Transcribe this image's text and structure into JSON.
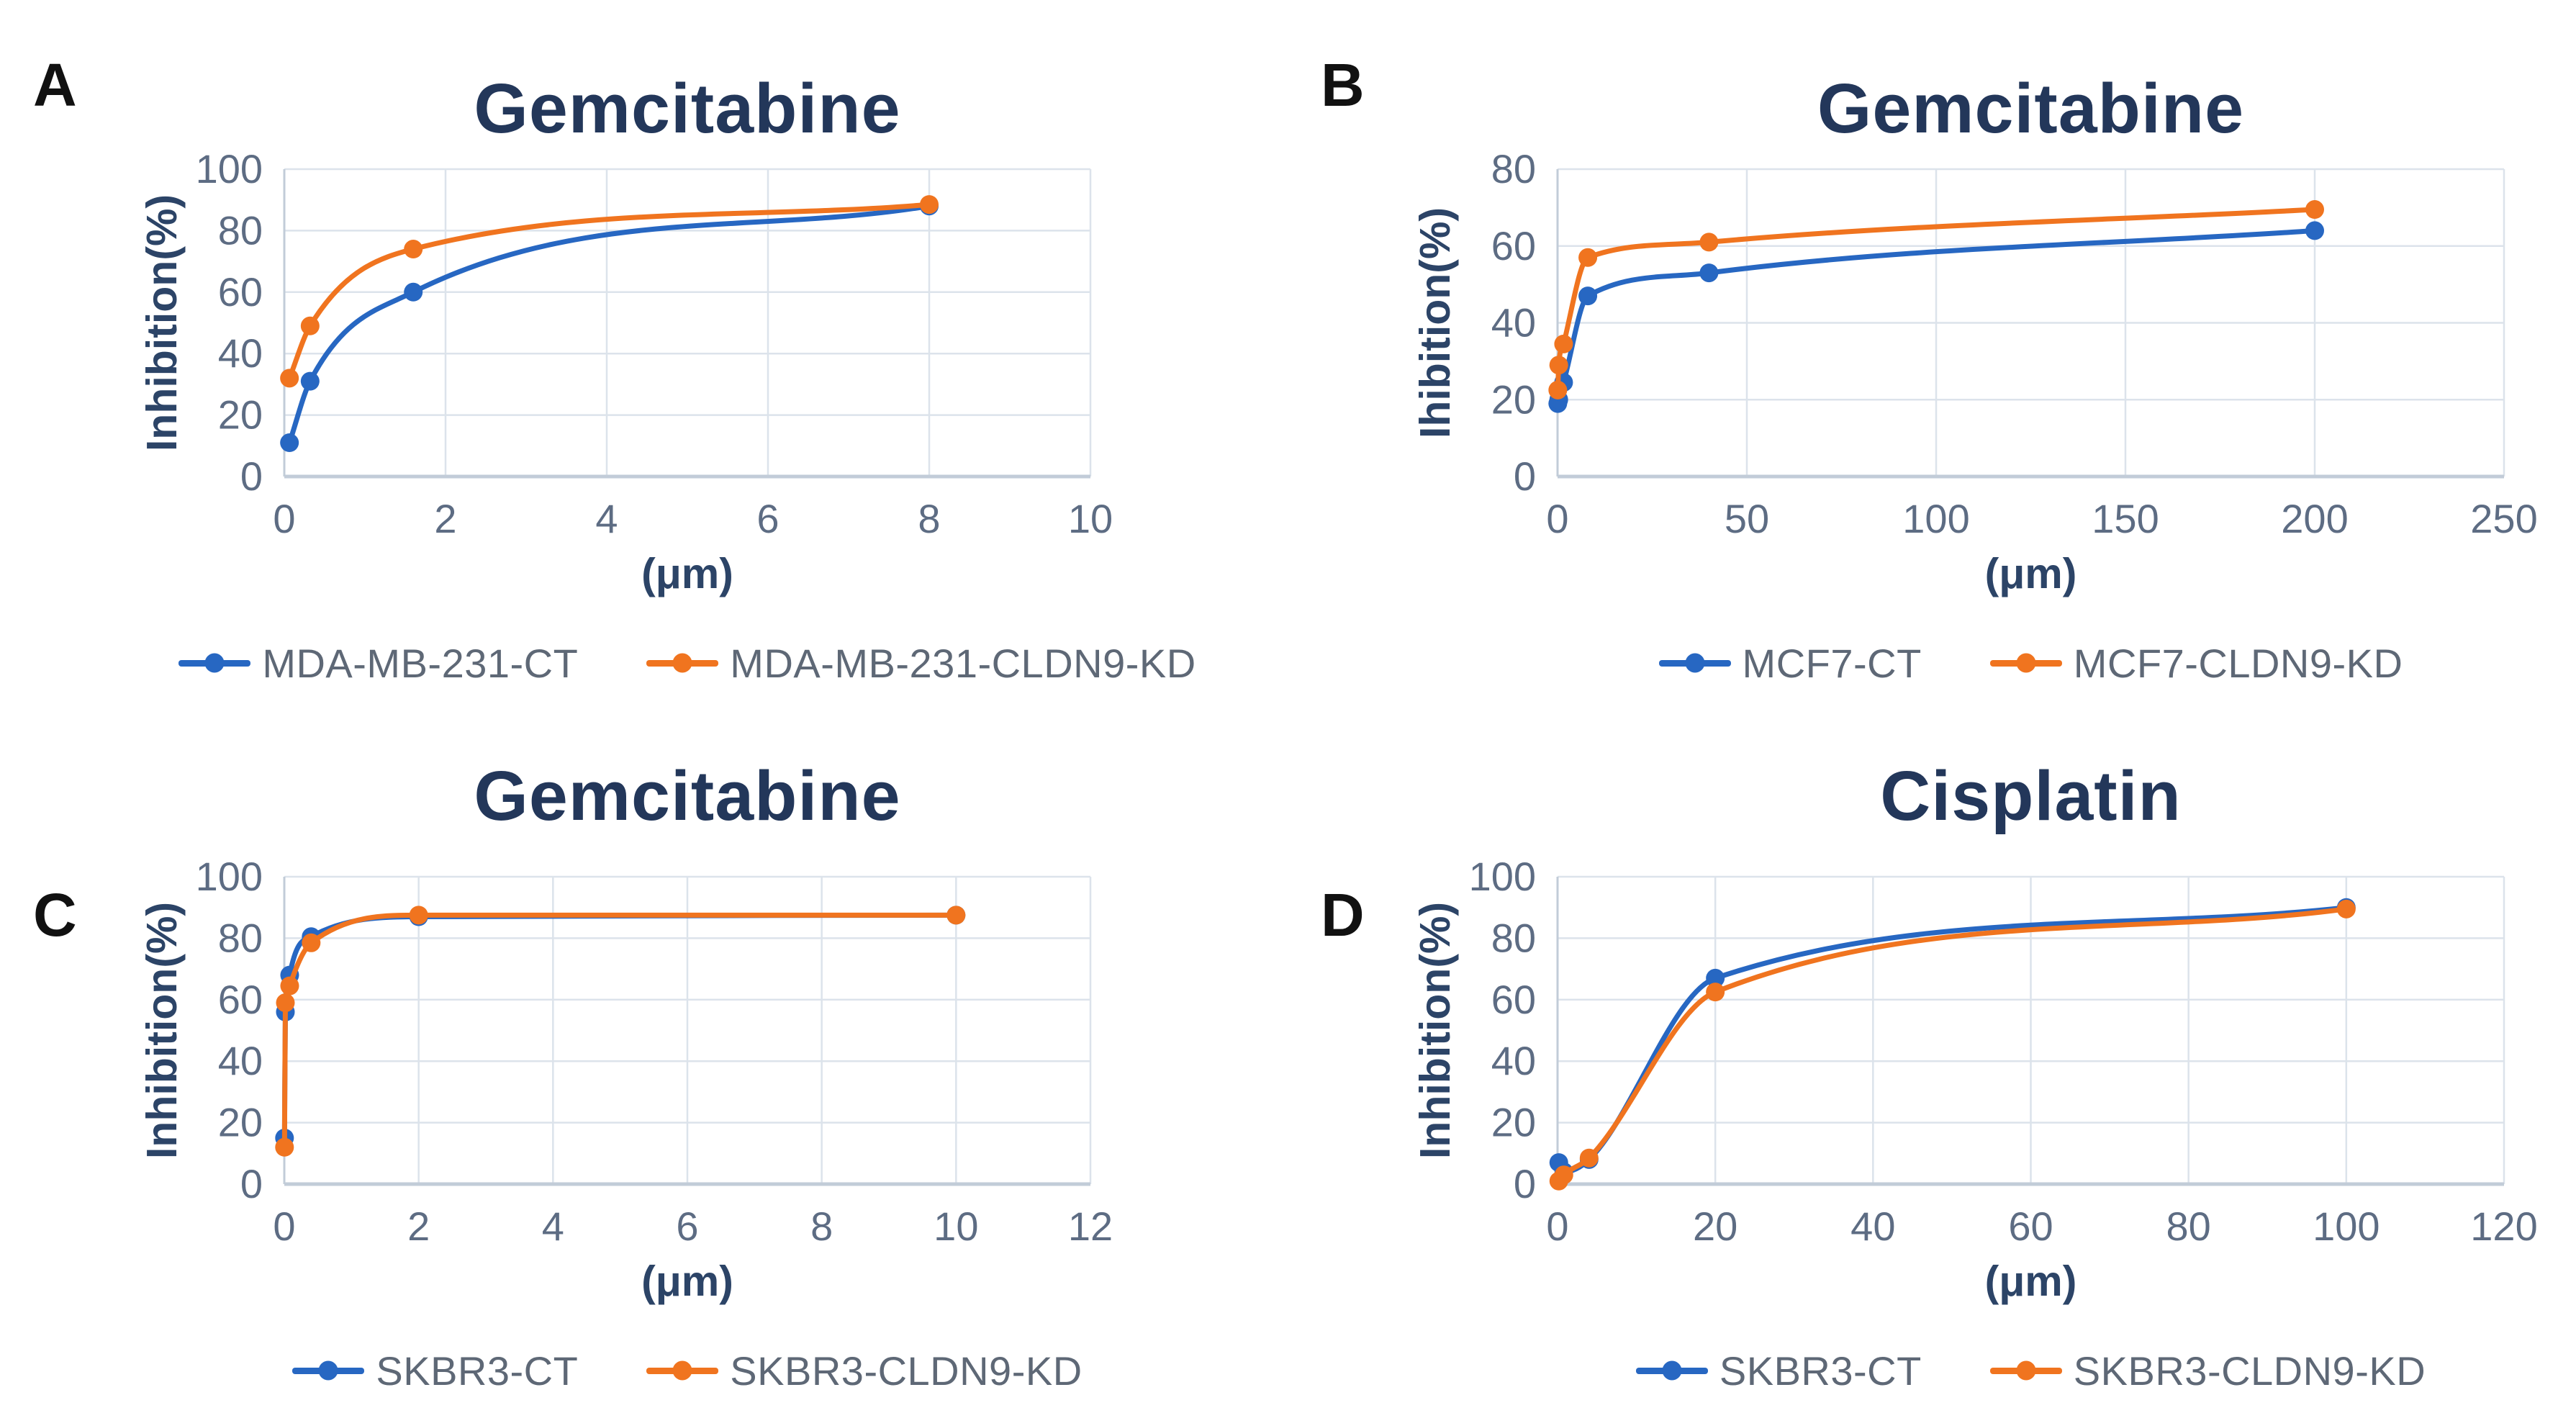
{
  "figure": {
    "background": "#FFFFFF",
    "description_title": ""
  },
  "chart_data": {
    "style": {
      "blue": "#2767C2",
      "orange": "#F0741F",
      "title_color": "#23375A",
      "axis_label_color": "#2C4467",
      "tick_color": "#5D6C83",
      "legend_text_color": "#5E6876",
      "grid_color": "#DCE3EB",
      "axis_color": "#C2CCD8",
      "letter_color": "#111111"
    },
    "panels": [
      {
        "type": "line",
        "panel_letter": "A",
        "title": "Gemcitabine",
        "ylabel": "Inhibition(%)",
        "xlabel": "(μm)",
        "xlim": [
          0,
          10
        ],
        "ylim": [
          0,
          100
        ],
        "x_ticks": [
          0,
          2,
          4,
          6,
          8,
          10
        ],
        "y_ticks": [
          0,
          20,
          40,
          60,
          80,
          100
        ],
        "grid": true,
        "legend_position": "bottom",
        "plot": {
          "left": 395,
          "right": 1515,
          "top": 235,
          "bottom": 662
        },
        "series": [
          {
            "name": "MDA-MB-231-CT",
            "color_key": "blue",
            "points": [
              [
                0.064,
                11
              ],
              [
                0.32,
                31
              ],
              [
                1.6,
                60
              ],
              [
                8,
                88
              ]
            ]
          },
          {
            "name": "MDA-MB-231-CLDN9-KD",
            "color_key": "orange",
            "points": [
              [
                0.064,
                32
              ],
              [
                0.32,
                49
              ],
              [
                1.6,
                74
              ],
              [
                8,
                88.5
              ]
            ]
          }
        ]
      },
      {
        "type": "line",
        "panel_letter": "B",
        "title": "Gemcitabine",
        "ylabel": "Ihibition(%)",
        "xlabel": "(μm)",
        "xlim": [
          0,
          250
        ],
        "ylim": [
          0,
          80
        ],
        "x_ticks": [
          0,
          50,
          100,
          150,
          200,
          250
        ],
        "y_ticks": [
          0,
          20,
          40,
          60,
          80
        ],
        "grid": true,
        "legend_position": "bottom",
        "plot": {
          "left": 375,
          "right": 1690,
          "top": 235,
          "bottom": 662
        },
        "series": [
          {
            "name": "MCF7-CT",
            "color_key": "blue",
            "points": [
              [
                0.064,
                19
              ],
              [
                0.32,
                20
              ],
              [
                1.6,
                24.5
              ],
              [
                8,
                47
              ],
              [
                40,
                53
              ],
              [
                200,
                64
              ]
            ]
          },
          {
            "name": "MCF7-CLDN9-KD",
            "color_key": "orange",
            "points": [
              [
                0.064,
                22.5
              ],
              [
                0.32,
                29
              ],
              [
                1.6,
                34.5
              ],
              [
                8,
                57
              ],
              [
                40,
                61
              ],
              [
                200,
                69.5
              ]
            ]
          }
        ]
      },
      {
        "type": "line",
        "panel_letter": "C",
        "title": "Gemcitabine",
        "ylabel": "Inhibition(%)",
        "xlabel": "(μm)",
        "xlim": [
          0,
          12
        ],
        "ylim": [
          0,
          100
        ],
        "x_ticks": [
          0,
          2,
          4,
          6,
          8,
          10,
          12
        ],
        "y_ticks": [
          0,
          20,
          40,
          60,
          80,
          100
        ],
        "grid": true,
        "legend_position": "bottom",
        "plot": {
          "left": 395,
          "right": 1515,
          "top": 235,
          "bottom": 662
        },
        "series": [
          {
            "name": "SKBR3-CT",
            "color_key": "blue",
            "points": [
              [
                0.0032,
                15
              ],
              [
                0.016,
                56
              ],
              [
                0.08,
                68
              ],
              [
                0.4,
                80.5
              ],
              [
                2,
                87
              ],
              [
                10,
                87.5
              ]
            ]
          },
          {
            "name": "SKBR3-CLDN9-KD",
            "color_key": "orange",
            "points": [
              [
                0.0032,
                12
              ],
              [
                0.016,
                59
              ],
              [
                0.08,
                64.5
              ],
              [
                0.4,
                78.5
              ],
              [
                2,
                87.5
              ],
              [
                10,
                87.5
              ]
            ]
          }
        ]
      },
      {
        "type": "line",
        "panel_letter": "D",
        "title": "Cisplatin",
        "ylabel": "Inhibition(%)",
        "xlabel": "(μm)",
        "xlim": [
          0,
          120
        ],
        "ylim": [
          0,
          100
        ],
        "x_ticks": [
          0,
          20,
          40,
          60,
          80,
          100,
          120
        ],
        "y_ticks": [
          0,
          20,
          40,
          60,
          80,
          100
        ],
        "grid": true,
        "legend_position": "bottom",
        "plot": {
          "left": 375,
          "right": 1690,
          "top": 235,
          "bottom": 662
        },
        "series": [
          {
            "name": "SKBR3-CT",
            "color_key": "blue",
            "points": [
              [
                0.16,
                7
              ],
              [
                0.8,
                4
              ],
              [
                4,
                8
              ],
              [
                20,
                67
              ],
              [
                100,
                90
              ]
            ]
          },
          {
            "name": "SKBR3-CLDN9-KD",
            "color_key": "orange",
            "points": [
              [
                0.16,
                1
              ],
              [
                0.8,
                3
              ],
              [
                4,
                8.5
              ],
              [
                20,
                62.5
              ],
              [
                100,
                89.5
              ]
            ]
          }
        ]
      }
    ]
  }
}
